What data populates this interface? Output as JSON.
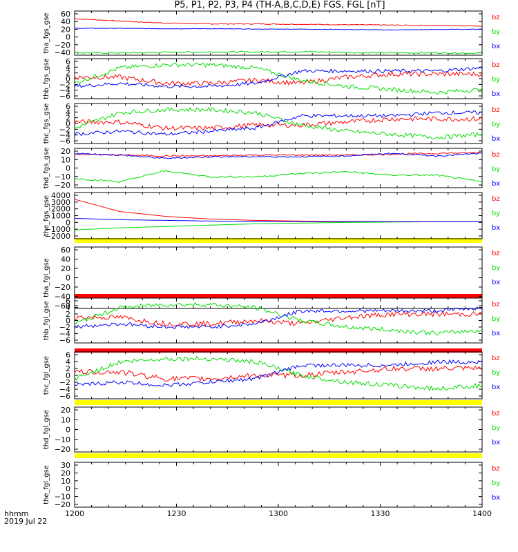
{
  "title": "P5, P1, P2, P3, P4 (TH-A,B,C,D,E) FGS, FGL [nT]",
  "footer": {
    "time_label": "hhmm",
    "date_label": "2019 Jul 22"
  },
  "colors": {
    "bz": "#ff0000",
    "by": "#00dd00",
    "bx": "#0000ff",
    "bar_yellow": "#ffff00",
    "bar_red": "#ff0000"
  },
  "chart_data": {
    "type": "line",
    "x_axis": {
      "range": [
        "1200",
        "1400"
      ],
      "ticks": [
        "1200",
        "1230",
        "1300",
        "1330",
        "1400"
      ]
    },
    "panels": [
      {
        "ylabel": "tha_fgs_gse",
        "ylim": [
          -45,
          65
        ],
        "yticks": [
          "60",
          "40",
          "20",
          "0",
          "−20",
          "−40"
        ],
        "series": [
          {
            "name": "bz",
            "level": [
              46,
              40,
              35,
              33,
              33,
              32,
              31,
              30,
              29,
              28
            ],
            "noise": 1
          },
          {
            "name": "by",
            "level": [
              -39,
              -39,
              -38,
              -37,
              -37,
              -36,
              -38,
              -39,
              -39,
              -40
            ],
            "noise": 2
          },
          {
            "name": "bx",
            "level": [
              22,
              22,
              21,
              21,
              20,
              20,
              19,
              18,
              19,
              20
            ],
            "noise": 0.6
          }
        ],
        "legend": [
          "bz",
          "by",
          "bx"
        ]
      },
      {
        "ylabel": "thb_fgs_gse",
        "ylim": [
          -6,
          7
        ],
        "yticks": [
          "6",
          "4",
          "2",
          "0",
          "−2",
          "−4",
          "−6"
        ],
        "series": [
          {
            "name": "bz",
            "level": [
              1,
              1,
              -1,
              -1,
              0,
              -1,
              1,
              2,
              2,
              2
            ],
            "noise": 0.8
          },
          {
            "name": "by",
            "level": [
              -1,
              4,
              5,
              5,
              4,
              0,
              -2,
              -3,
              -4,
              -3
            ],
            "noise": 0.7
          },
          {
            "name": "bx",
            "level": [
              -2,
              -1,
              -2,
              -2,
              -1,
              3,
              3,
              3,
              3,
              4
            ],
            "noise": 0.6
          }
        ],
        "legend": [
          "bz",
          "by",
          "bx"
        ]
      },
      {
        "ylabel": "thc_fgs_gse",
        "ylim": [
          -6,
          7
        ],
        "yticks": [
          "6",
          "4",
          "2",
          "0",
          "−2",
          "−4",
          "−6"
        ],
        "series": [
          {
            "name": "bz",
            "level": [
              1,
              1,
              -1,
              -1,
              0,
              0,
              1,
              2,
              2,
              2
            ],
            "noise": 0.8
          },
          {
            "name": "by",
            "level": [
              -1,
              4,
              5,
              5,
              4,
              0,
              -2,
              -3,
              -4,
              -3
            ],
            "noise": 0.7
          },
          {
            "name": "bx",
            "level": [
              -3,
              -2,
              -3,
              -2,
              -1,
              3,
              3,
              3,
              4,
              4
            ],
            "noise": 0.6
          }
        ],
        "legend": [
          "bz",
          "by",
          "bx"
        ]
      },
      {
        "ylabel": "thd_fgs_gse",
        "ylim": [
          -25,
          22
        ],
        "yticks": [
          "20",
          "10",
          "0",
          "−10",
          "−20"
        ],
        "series": [
          {
            "name": "bz",
            "level": [
              15,
              14,
              13,
              13,
              14,
              14,
              14,
              15,
              16,
              17
            ],
            "noise": 1
          },
          {
            "name": "by",
            "level": [
              -14,
              -18,
              -5,
              -12,
              -12,
              -8,
              -6,
              -10,
              -10,
              -18
            ],
            "noise": 1
          },
          {
            "name": "bx",
            "level": [
              16,
              14,
              10,
              12,
              12,
              12,
              13,
              16,
              13,
              16
            ],
            "noise": 0.8
          }
        ],
        "legend": [
          "bz",
          "by",
          "bx"
        ]
      },
      {
        "ylabel": "the_fgs_gse",
        "ylim": [
          -2500,
          4300
        ],
        "yticks": [
          "4000",
          "3000",
          "2000",
          "1000",
          "0",
          "−1000",
          "−2000"
        ],
        "series": [
          {
            "name": "bz",
            "level": [
              3300,
              1500,
              800,
              400,
              200,
              100,
              50,
              20,
              10,
              10
            ],
            "noise": 0
          },
          {
            "name": "by",
            "level": [
              -1200,
              -900,
              -700,
              -500,
              -300,
              -200,
              -100,
              -50,
              0,
              0
            ],
            "noise": 0
          },
          {
            "name": "bx",
            "level": [
              500,
              300,
              200,
              100,
              50,
              20,
              10,
              0,
              0,
              0
            ],
            "noise": 0
          }
        ],
        "legend": [
          "bz",
          "by",
          "bx"
        ]
      },
      {
        "ylabel": "tha_fgl_gse",
        "ylim": [
          -70,
          70
        ],
        "yticks": [
          "60",
          "40",
          "20",
          "0",
          "−20",
          "−40",
          "−60"
        ],
        "series": [],
        "legend": [
          "bz",
          "by",
          "bx"
        ]
      },
      {
        "ylabel": "thb_fgl_gse",
        "ylim": [
          -7,
          7
        ],
        "yticks": [
          "6",
          "4",
          "2",
          "0",
          "−2",
          "−4",
          "−6"
        ],
        "series": [
          {
            "name": "bz",
            "level": [
              1,
              1,
              -1,
              -1,
              0,
              -1,
              1,
              2,
              2,
              2
            ],
            "noise": 0.8
          },
          {
            "name": "by",
            "level": [
              -1,
              4,
              5,
              5,
              4,
              0,
              -2,
              -3,
              -4,
              -3
            ],
            "noise": 0.7
          },
          {
            "name": "bx",
            "level": [
              -2,
              -1,
              -2,
              -2,
              -1,
              3,
              3,
              3,
              3,
              4
            ],
            "noise": 0.6
          }
        ],
        "legend": [
          "bz",
          "by",
          "bx"
        ]
      },
      {
        "ylabel": "thc_fgl_gse",
        "ylim": [
          -7,
          7
        ],
        "yticks": [
          "6",
          "4",
          "2",
          "0",
          "−2",
          "−4",
          "−6"
        ],
        "series": [
          {
            "name": "bz",
            "level": [
              1,
              1,
              -1,
              -1,
              0,
              0,
              1,
              2,
              2,
              2
            ],
            "noise": 0.8
          },
          {
            "name": "by",
            "level": [
              -1,
              4,
              5,
              5,
              4,
              0,
              -2,
              -3,
              -4,
              -3
            ],
            "noise": 0.7
          },
          {
            "name": "bx",
            "level": [
              -3,
              -2,
              -3,
              -2,
              -1,
              3,
              3,
              3,
              4,
              4
            ],
            "noise": 0.6
          }
        ],
        "legend": [
          "bz",
          "by",
          "bx"
        ]
      },
      {
        "ylabel": "thd_fgl_gse",
        "ylim": [
          -25,
          25
        ],
        "yticks": [
          "20",
          "10",
          "0",
          "−10",
          "−20"
        ],
        "series": [],
        "legend": [
          "bz",
          "by",
          "bx"
        ]
      },
      {
        "ylabel": "the_fgl_gse",
        "ylim": [
          -22,
          33
        ],
        "yticks": [
          "30",
          "20",
          "10",
          "0",
          "−10",
          "−20"
        ],
        "series": [],
        "legend": [
          "bz",
          "by",
          "bx"
        ]
      }
    ]
  }
}
